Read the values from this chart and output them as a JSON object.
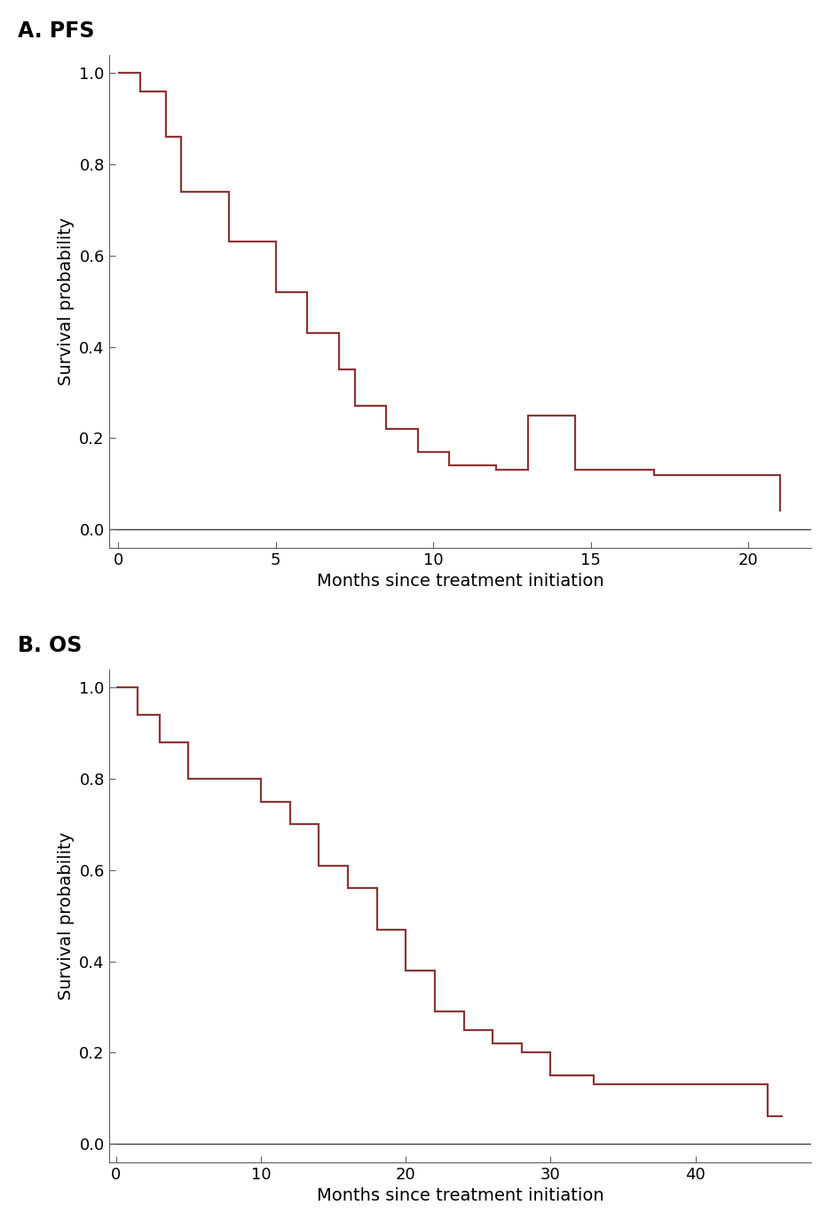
{
  "pfs": {
    "title": "A. PFS",
    "xlabel": "Months since treatment initiation",
    "ylabel": "Survival probability",
    "xlim": [
      -0.3,
      22
    ],
    "ylim": [
      -0.04,
      1.04
    ],
    "xticks": [
      0,
      5,
      10,
      15,
      20
    ],
    "yticks": [
      0.0,
      0.2,
      0.4,
      0.6,
      0.8,
      1.0
    ],
    "times": [
      0,
      0.7,
      1.5,
      2.0,
      3.5,
      5.0,
      6.0,
      7.0,
      7.5,
      8.5,
      9.5,
      10.5,
      12.0,
      13.0,
      14.5,
      17.0,
      21.0
    ],
    "surv": [
      1.0,
      0.96,
      0.86,
      0.74,
      0.63,
      0.52,
      0.43,
      0.35,
      0.27,
      0.22,
      0.17,
      0.14,
      0.13,
      0.25,
      0.13,
      0.12,
      0.04
    ]
  },
  "os": {
    "title": "B. OS",
    "xlabel": "Months since treatment initiation",
    "ylabel": "Survival probability",
    "xlim": [
      -0.5,
      48
    ],
    "ylim": [
      -0.04,
      1.04
    ],
    "xticks": [
      0,
      10,
      20,
      30,
      40
    ],
    "yticks": [
      0.0,
      0.2,
      0.4,
      0.6,
      0.8,
      1.0
    ],
    "times": [
      0,
      1.5,
      3.0,
      5.0,
      10.0,
      12.0,
      14.0,
      16.0,
      18.0,
      20.0,
      22.0,
      24.0,
      26.0,
      28.0,
      30.0,
      33.0,
      38.0,
      45.0,
      46.0
    ],
    "surv": [
      1.0,
      0.94,
      0.88,
      0.8,
      0.75,
      0.7,
      0.61,
      0.56,
      0.47,
      0.38,
      0.29,
      0.25,
      0.22,
      0.2,
      0.15,
      0.13,
      0.13,
      0.06,
      0.06
    ]
  },
  "line_color": "#8B3535",
  "line_width": 1.6,
  "background_color": "#ffffff",
  "title_fontsize": 17,
  "label_fontsize": 14,
  "tick_fontsize": 13,
  "title_fontweight": "bold"
}
